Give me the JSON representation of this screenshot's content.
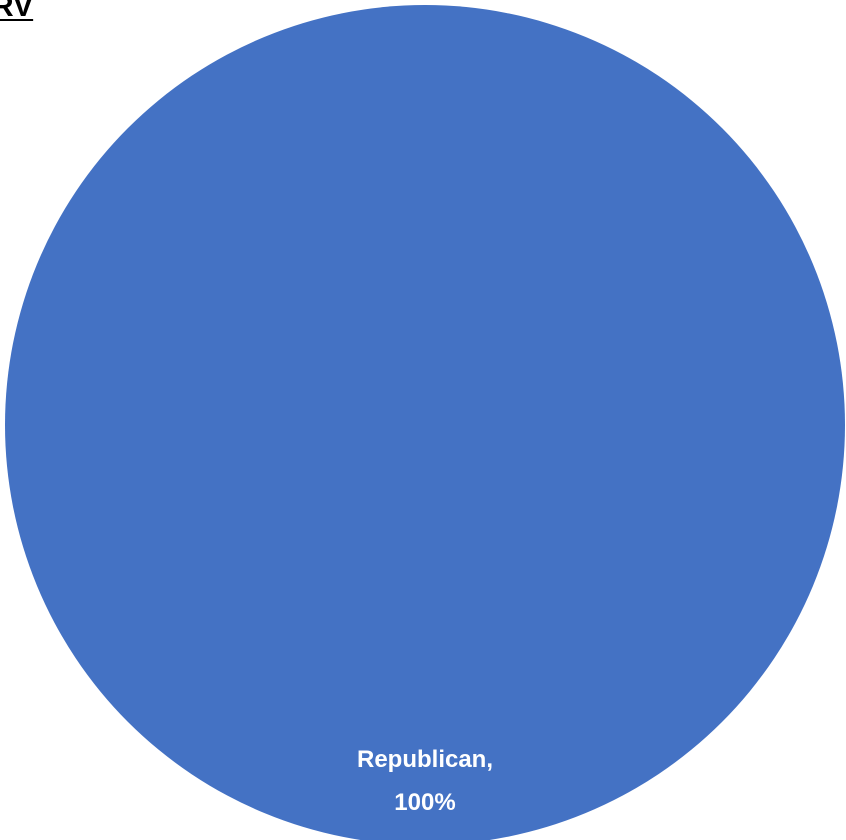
{
  "chart_data": {
    "type": "pie",
    "title": "RV",
    "slices": [
      {
        "label": "Republican",
        "value": 100,
        "display_label": "Republican,",
        "display_value": "100%",
        "color": "#4472C4"
      }
    ]
  }
}
